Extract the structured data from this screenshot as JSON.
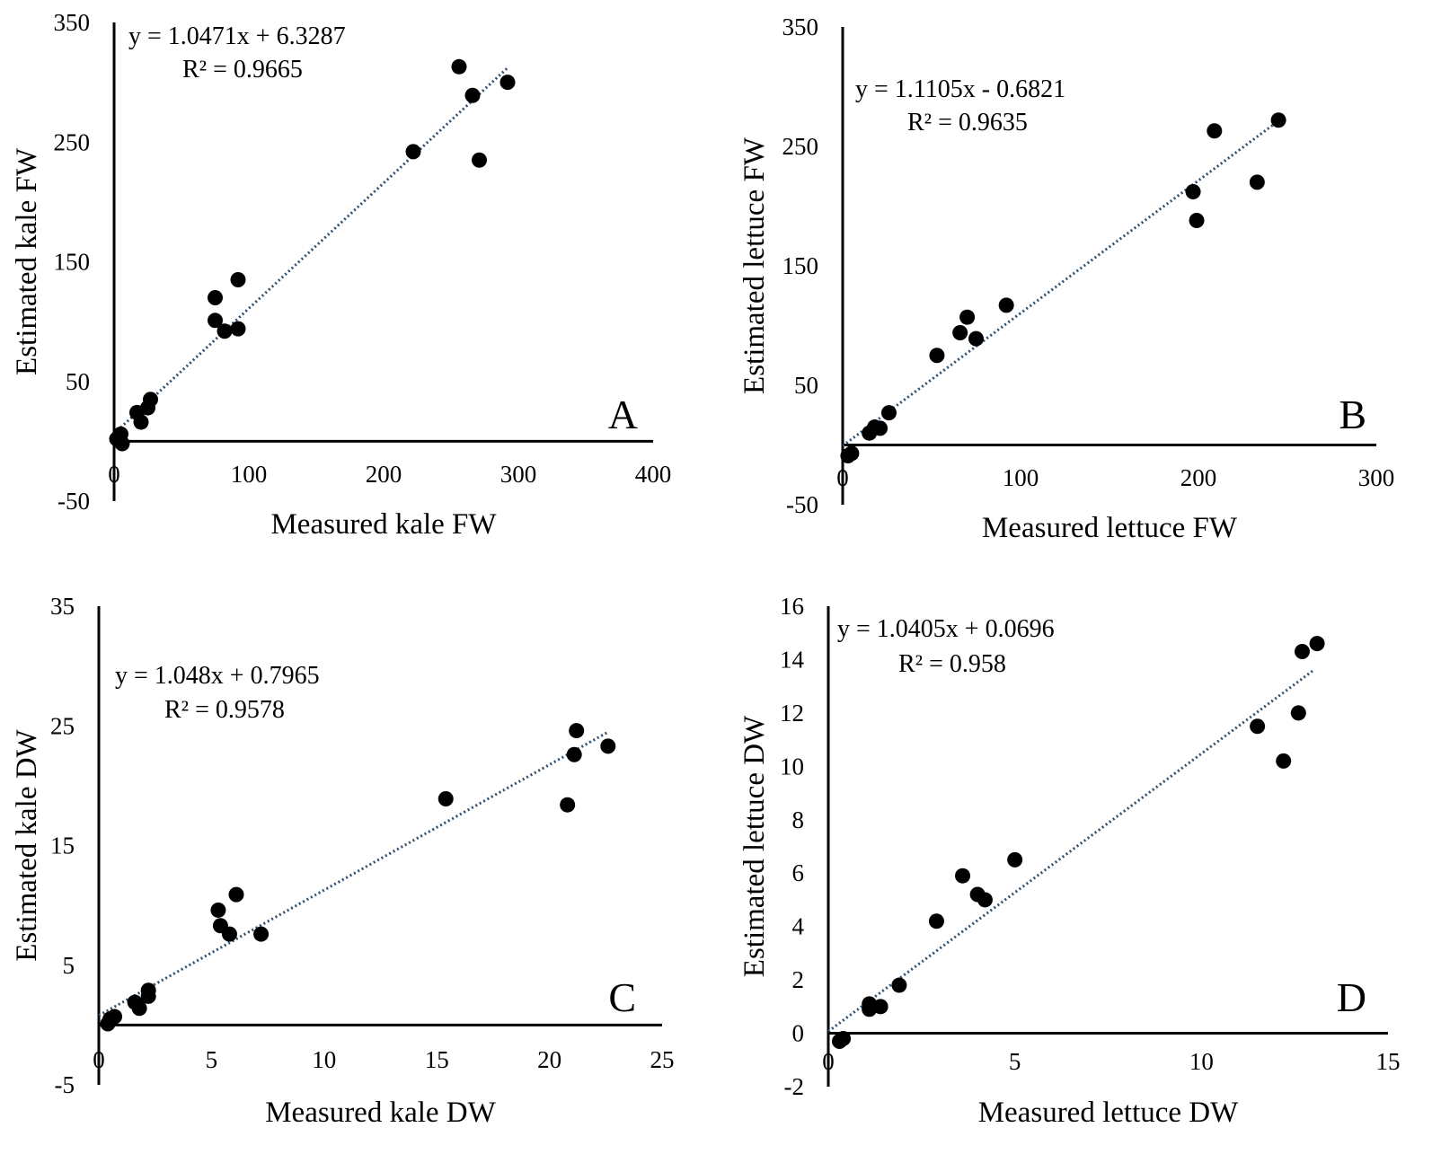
{
  "chart_data": [
    {
      "type": "scatter",
      "panel_label": "A",
      "xlabel": "Measured kale FW",
      "ylabel": "Estimated kale FW",
      "xlim": [
        0,
        400
      ],
      "ylim": [
        -50,
        350
      ],
      "xticks": [
        0,
        100,
        200,
        300,
        400
      ],
      "yticks": [
        -50,
        50,
        150,
        250,
        350
      ],
      "equation": "y = 1.0471x + 6.3287",
      "r2": "R² = 0.9665",
      "trendline": {
        "slope": 1.0471,
        "intercept": 6.3287,
        "x_range": [
          0,
          292
        ]
      },
      "points": [
        {
          "x": 2,
          "y": 2
        },
        {
          "x": 5,
          "y": 6
        },
        {
          "x": 6,
          "y": -2
        },
        {
          "x": 17,
          "y": 24
        },
        {
          "x": 20,
          "y": 16
        },
        {
          "x": 25,
          "y": 28
        },
        {
          "x": 27,
          "y": 35
        },
        {
          "x": 75,
          "y": 101
        },
        {
          "x": 75,
          "y": 120
        },
        {
          "x": 82,
          "y": 92
        },
        {
          "x": 92,
          "y": 94
        },
        {
          "x": 92,
          "y": 135
        },
        {
          "x": 222,
          "y": 242
        },
        {
          "x": 256,
          "y": 313
        },
        {
          "x": 266,
          "y": 289
        },
        {
          "x": 271,
          "y": 235
        },
        {
          "x": 292,
          "y": 300
        }
      ]
    },
    {
      "type": "scatter",
      "panel_label": "B",
      "xlabel": "Measured lettuce FW",
      "ylabel": "Estimated lettuce FW",
      "xlim": [
        0,
        300
      ],
      "ylim": [
        -50,
        350
      ],
      "xticks": [
        0,
        100,
        200,
        300
      ],
      "yticks": [
        -50,
        50,
        150,
        250,
        350
      ],
      "equation": "y = 1.1105x - 0.6821",
      "r2": "R² = 0.9635",
      "trendline": {
        "slope": 1.1105,
        "intercept": -0.6821,
        "x_range": [
          0,
          245
        ]
      },
      "points": [
        {
          "x": 3,
          "y": -9
        },
        {
          "x": 5,
          "y": -7
        },
        {
          "x": 15,
          "y": 10
        },
        {
          "x": 18,
          "y": 15
        },
        {
          "x": 21,
          "y": 14
        },
        {
          "x": 26,
          "y": 27
        },
        {
          "x": 53,
          "y": 75
        },
        {
          "x": 66,
          "y": 94
        },
        {
          "x": 70,
          "y": 107
        },
        {
          "x": 75,
          "y": 89
        },
        {
          "x": 92,
          "y": 117
        },
        {
          "x": 197,
          "y": 212
        },
        {
          "x": 199,
          "y": 188
        },
        {
          "x": 209,
          "y": 263
        },
        {
          "x": 233,
          "y": 220
        },
        {
          "x": 245,
          "y": 272
        }
      ]
    },
    {
      "type": "scatter",
      "panel_label": "C",
      "xlabel": "Measured kale DW",
      "ylabel": "Estimated kale DW",
      "xlim": [
        0,
        25
      ],
      "ylim": [
        -5,
        35
      ],
      "xticks": [
        0,
        5,
        10,
        15,
        20,
        25
      ],
      "yticks": [
        -5,
        5,
        15,
        25,
        35
      ],
      "equation": "y = 1.048x + 0.7965",
      "r2": "R² = 0.9578",
      "trendline": {
        "slope": 1.048,
        "intercept": 0.7965,
        "x_range": [
          0,
          22.6
        ]
      },
      "points": [
        {
          "x": 0.4,
          "y": 0.1
        },
        {
          "x": 0.5,
          "y": 0.5
        },
        {
          "x": 0.7,
          "y": 0.7
        },
        {
          "x": 1.6,
          "y": 1.9
        },
        {
          "x": 1.8,
          "y": 1.4
        },
        {
          "x": 2.2,
          "y": 2.4
        },
        {
          "x": 2.2,
          "y": 2.9
        },
        {
          "x": 5.3,
          "y": 9.6
        },
        {
          "x": 5.4,
          "y": 8.3
        },
        {
          "x": 5.8,
          "y": 7.6
        },
        {
          "x": 6.1,
          "y": 10.9
        },
        {
          "x": 7.2,
          "y": 7.6
        },
        {
          "x": 15.4,
          "y": 18.9
        },
        {
          "x": 20.8,
          "y": 18.4
        },
        {
          "x": 21.1,
          "y": 22.6
        },
        {
          "x": 21.2,
          "y": 24.6
        },
        {
          "x": 22.6,
          "y": 23.3
        }
      ]
    },
    {
      "type": "scatter",
      "panel_label": "D",
      "xlabel": "Measured lettuce DW",
      "ylabel": "Estimated lettuce DW",
      "xlim": [
        0,
        15
      ],
      "ylim": [
        -2,
        16
      ],
      "xticks": [
        0,
        5,
        10,
        15
      ],
      "yticks": [
        -2,
        0,
        2,
        4,
        6,
        8,
        10,
        12,
        14,
        16
      ],
      "equation": "y = 1.0405x + 0.0696",
      "r2": "R² = 0.958",
      "trendline": {
        "slope": 1.0405,
        "intercept": 0.0696,
        "x_range": [
          0,
          13
        ]
      },
      "points": [
        {
          "x": 0.3,
          "y": -0.3
        },
        {
          "x": 0.4,
          "y": -0.2
        },
        {
          "x": 1.1,
          "y": 0.9
        },
        {
          "x": 1.1,
          "y": 1.1
        },
        {
          "x": 1.4,
          "y": 1.0
        },
        {
          "x": 1.9,
          "y": 1.8
        },
        {
          "x": 2.9,
          "y": 4.2
        },
        {
          "x": 3.6,
          "y": 5.9
        },
        {
          "x": 4.0,
          "y": 5.2
        },
        {
          "x": 4.2,
          "y": 5.0
        },
        {
          "x": 5.0,
          "y": 6.5
        },
        {
          "x": 11.5,
          "y": 11.5
        },
        {
          "x": 12.2,
          "y": 10.2
        },
        {
          "x": 12.6,
          "y": 12.0
        },
        {
          "x": 12.7,
          "y": 14.3
        },
        {
          "x": 13.1,
          "y": 14.6
        }
      ]
    }
  ]
}
